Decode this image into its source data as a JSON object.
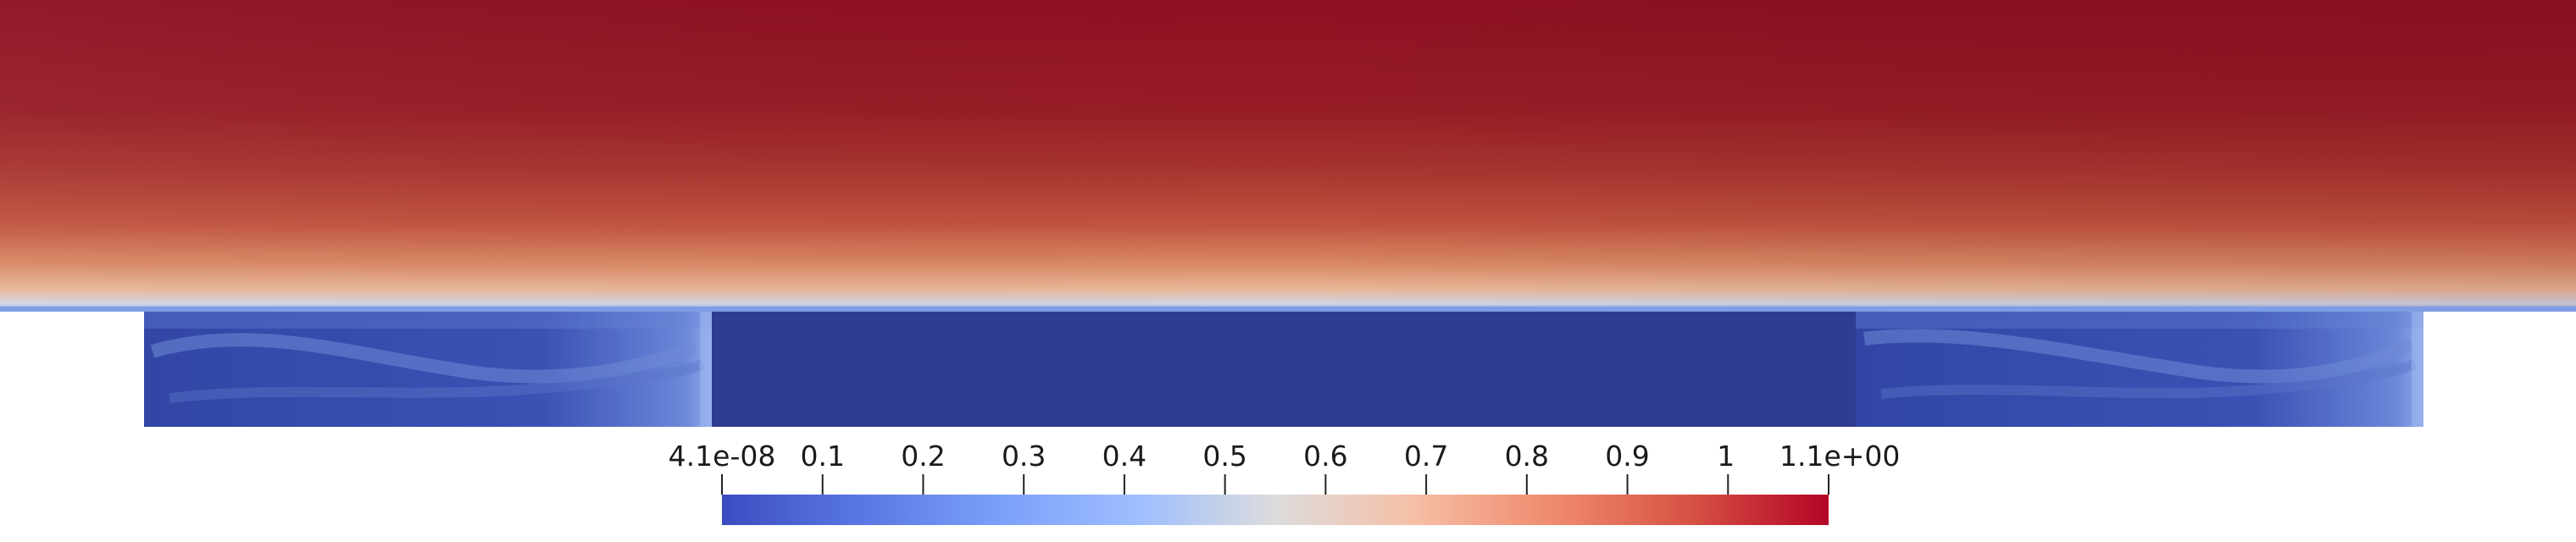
{
  "colorbar": {
    "range": [
      4.1e-08,
      1.1
    ],
    "tick_values": [
      0.1,
      0.2,
      0.3,
      0.4,
      0.5,
      0.6,
      0.7,
      0.8,
      0.9,
      1.0
    ],
    "tick_labels": [
      "4.1e-08",
      "0.1",
      "0.2",
      "0.3",
      "0.4",
      "0.5",
      "0.6",
      "0.7",
      "0.8",
      "0.9",
      "1",
      "1.1e+00"
    ],
    "colormap": "Cool to Warm",
    "colors": {
      "low": "#3b4cc0",
      "mid": "#dddddd",
      "high": "#b40426"
    }
  },
  "field_colors": {
    "top_region": "#8f1020",
    "cavity_region": "#2f3f94",
    "interface": "#5a7ad6"
  }
}
